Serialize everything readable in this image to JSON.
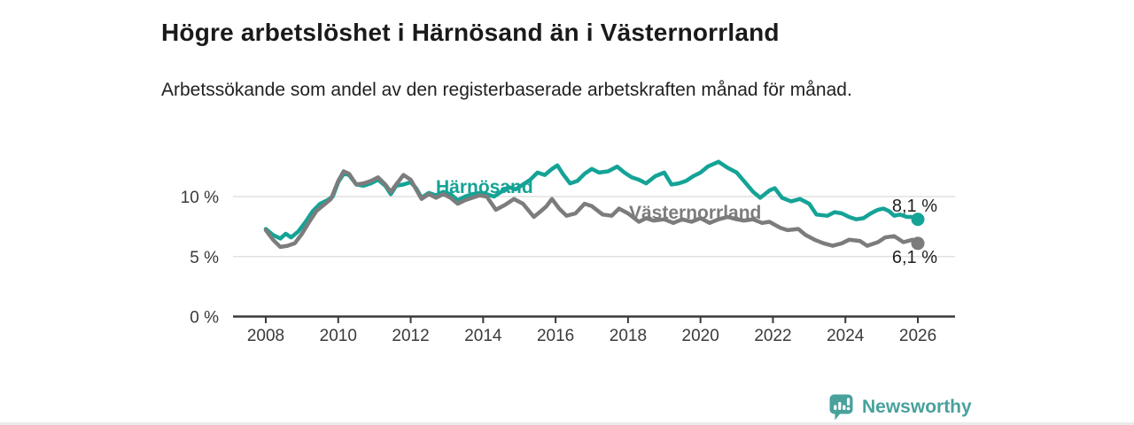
{
  "title": "Högre arbetslöshet i Härnösand än i Västernorrland",
  "subtitle": "Arbetssökande som andel av den registerbaserade arbetskraften månad för månad.",
  "branding": {
    "logo_text": "Newsworthy",
    "logo_color": "#49a19c",
    "logo_icon": "bar-chart-speech-bubble-icon"
  },
  "chart_data": {
    "type": "line",
    "title": "",
    "xlabel": "",
    "ylabel": "",
    "grid": "horizontal",
    "x_axis": {
      "range": [
        2007.1,
        2027.0
      ],
      "ticks": [
        2008,
        2010,
        2012,
        2014,
        2016,
        2018,
        2020,
        2022,
        2024,
        2026
      ]
    },
    "y_axis": {
      "range": [
        0,
        14.6
      ],
      "ticks": [
        0,
        5,
        10
      ],
      "tick_labels": [
        "0 %",
        "5 %",
        "10 %"
      ]
    },
    "colors": {
      "axis": "#3a3a3a",
      "grid": "#dcdcdc",
      "end_label_text": "#1f1f1f"
    },
    "series": [
      {
        "name": "Härnösand",
        "color": "#14a396",
        "end_label": "8,1 %",
        "end_value": 8.1,
        "points": [
          [
            2008.0,
            7.3
          ],
          [
            2008.2,
            6.8
          ],
          [
            2008.4,
            6.5
          ],
          [
            2008.55,
            6.9
          ],
          [
            2008.7,
            6.6
          ],
          [
            2008.9,
            7.1
          ],
          [
            2009.1,
            7.9
          ],
          [
            2009.3,
            8.8
          ],
          [
            2009.5,
            9.4
          ],
          [
            2009.7,
            9.7
          ],
          [
            2009.85,
            10.0
          ],
          [
            2010.0,
            11.2
          ],
          [
            2010.15,
            11.9
          ],
          [
            2010.3,
            11.8
          ],
          [
            2010.5,
            11.0
          ],
          [
            2010.7,
            10.9
          ],
          [
            2010.9,
            11.1
          ],
          [
            2011.1,
            11.4
          ],
          [
            2011.3,
            10.9
          ],
          [
            2011.45,
            10.2
          ],
          [
            2011.6,
            10.9
          ],
          [
            2011.8,
            11.0
          ],
          [
            2012.0,
            11.2
          ],
          [
            2012.15,
            10.7
          ],
          [
            2012.3,
            9.9
          ],
          [
            2012.5,
            10.3
          ],
          [
            2012.7,
            10.1
          ],
          [
            2012.9,
            10.4
          ],
          [
            2013.1,
            10.2
          ],
          [
            2013.3,
            9.7
          ],
          [
            2013.5,
            10.0
          ],
          [
            2013.7,
            10.2
          ],
          [
            2013.9,
            10.3
          ],
          [
            2014.1,
            10.2
          ],
          [
            2014.3,
            10.0
          ],
          [
            2014.5,
            10.4
          ],
          [
            2014.7,
            10.8
          ],
          [
            2014.9,
            10.6
          ],
          [
            2015.1,
            11.0
          ],
          [
            2015.3,
            11.4
          ],
          [
            2015.5,
            12.0
          ],
          [
            2015.7,
            11.8
          ],
          [
            2015.9,
            12.3
          ],
          [
            2016.05,
            12.6
          ],
          [
            2016.2,
            11.9
          ],
          [
            2016.4,
            11.1
          ],
          [
            2016.6,
            11.3
          ],
          [
            2016.8,
            11.9
          ],
          [
            2017.0,
            12.3
          ],
          [
            2017.2,
            12.0
          ],
          [
            2017.45,
            12.1
          ],
          [
            2017.7,
            12.5
          ],
          [
            2017.9,
            12.0
          ],
          [
            2018.1,
            11.6
          ],
          [
            2018.3,
            11.4
          ],
          [
            2018.5,
            11.1
          ],
          [
            2018.75,
            11.7
          ],
          [
            2019.0,
            12.0
          ],
          [
            2019.2,
            11.0
          ],
          [
            2019.4,
            11.1
          ],
          [
            2019.6,
            11.3
          ],
          [
            2019.8,
            11.7
          ],
          [
            2020.0,
            12.0
          ],
          [
            2020.2,
            12.5
          ],
          [
            2020.5,
            12.9
          ],
          [
            2020.75,
            12.4
          ],
          [
            2021.0,
            12.0
          ],
          [
            2021.2,
            11.3
          ],
          [
            2021.45,
            10.4
          ],
          [
            2021.65,
            9.9
          ],
          [
            2021.9,
            10.5
          ],
          [
            2022.05,
            10.7
          ],
          [
            2022.25,
            9.9
          ],
          [
            2022.5,
            9.6
          ],
          [
            2022.75,
            9.8
          ],
          [
            2023.0,
            9.4
          ],
          [
            2023.2,
            8.5
          ],
          [
            2023.5,
            8.4
          ],
          [
            2023.7,
            8.7
          ],
          [
            2023.9,
            8.6
          ],
          [
            2024.1,
            8.3
          ],
          [
            2024.3,
            8.1
          ],
          [
            2024.5,
            8.2
          ],
          [
            2024.7,
            8.6
          ],
          [
            2024.9,
            8.9
          ],
          [
            2025.05,
            9.0
          ],
          [
            2025.2,
            8.8
          ],
          [
            2025.35,
            8.4
          ],
          [
            2025.5,
            8.5
          ],
          [
            2025.7,
            8.3
          ],
          [
            2025.85,
            8.3
          ],
          [
            2026.0,
            8.1
          ]
        ]
      },
      {
        "name": "Västernorrland",
        "color": "#7c7c7c",
        "end_label": "6,1 %",
        "end_value": 6.1,
        "points": [
          [
            2008.0,
            7.2
          ],
          [
            2008.2,
            6.4
          ],
          [
            2008.4,
            5.8
          ],
          [
            2008.6,
            5.9
          ],
          [
            2008.8,
            6.1
          ],
          [
            2009.0,
            6.9
          ],
          [
            2009.2,
            7.9
          ],
          [
            2009.4,
            8.8
          ],
          [
            2009.6,
            9.3
          ],
          [
            2009.8,
            9.8
          ],
          [
            2010.0,
            11.3
          ],
          [
            2010.15,
            12.1
          ],
          [
            2010.3,
            11.9
          ],
          [
            2010.5,
            11.0
          ],
          [
            2010.7,
            11.1
          ],
          [
            2010.9,
            11.3
          ],
          [
            2011.1,
            11.6
          ],
          [
            2011.3,
            11.0
          ],
          [
            2011.45,
            10.4
          ],
          [
            2011.6,
            11.0
          ],
          [
            2011.8,
            11.8
          ],
          [
            2012.0,
            11.4
          ],
          [
            2012.15,
            10.6
          ],
          [
            2012.3,
            9.8
          ],
          [
            2012.5,
            10.2
          ],
          [
            2012.7,
            9.9
          ],
          [
            2012.9,
            10.2
          ],
          [
            2013.1,
            9.9
          ],
          [
            2013.3,
            9.4
          ],
          [
            2013.5,
            9.7
          ],
          [
            2013.7,
            9.9
          ],
          [
            2013.9,
            10.1
          ],
          [
            2014.1,
            10.0
          ],
          [
            2014.35,
            8.9
          ],
          [
            2014.6,
            9.3
          ],
          [
            2014.85,
            9.8
          ],
          [
            2015.1,
            9.4
          ],
          [
            2015.4,
            8.3
          ],
          [
            2015.6,
            8.8
          ],
          [
            2015.75,
            9.2
          ],
          [
            2015.9,
            9.8
          ],
          [
            2016.1,
            9.0
          ],
          [
            2016.3,
            8.4
          ],
          [
            2016.55,
            8.6
          ],
          [
            2016.8,
            9.4
          ],
          [
            2017.0,
            9.2
          ],
          [
            2017.3,
            8.5
          ],
          [
            2017.55,
            8.4
          ],
          [
            2017.75,
            9.0
          ],
          [
            2018.0,
            8.6
          ],
          [
            2018.3,
            7.9
          ],
          [
            2018.5,
            8.2
          ],
          [
            2018.7,
            8.0
          ],
          [
            2019.0,
            8.1
          ],
          [
            2019.25,
            7.8
          ],
          [
            2019.5,
            8.1
          ],
          [
            2019.75,
            7.9
          ],
          [
            2020.0,
            8.2
          ],
          [
            2020.25,
            7.8
          ],
          [
            2020.5,
            8.1
          ],
          [
            2020.75,
            8.3
          ],
          [
            2021.0,
            8.1
          ],
          [
            2021.2,
            8.0
          ],
          [
            2021.45,
            8.1
          ],
          [
            2021.7,
            7.8
          ],
          [
            2021.9,
            7.9
          ],
          [
            2022.2,
            7.4
          ],
          [
            2022.4,
            7.2
          ],
          [
            2022.7,
            7.3
          ],
          [
            2022.9,
            6.8
          ],
          [
            2023.15,
            6.4
          ],
          [
            2023.4,
            6.1
          ],
          [
            2023.65,
            5.9
          ],
          [
            2023.9,
            6.1
          ],
          [
            2024.1,
            6.4
          ],
          [
            2024.4,
            6.3
          ],
          [
            2024.6,
            5.9
          ],
          [
            2024.9,
            6.2
          ],
          [
            2025.1,
            6.6
          ],
          [
            2025.35,
            6.7
          ],
          [
            2025.6,
            6.2
          ],
          [
            2025.85,
            6.4
          ],
          [
            2026.0,
            6.1
          ]
        ]
      }
    ],
    "legend": "inline-series-labels"
  }
}
